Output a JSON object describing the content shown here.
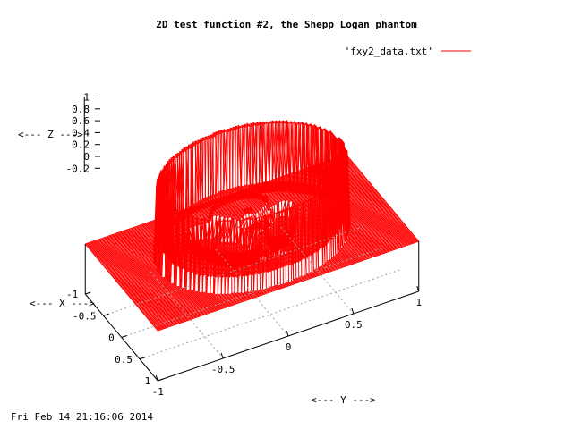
{
  "chart_data": {
    "type": "surface",
    "title": "2D test function #2, the Shepp Logan phantom",
    "legend": {
      "label": "'fxy2_data.txt'",
      "color": "#ff0000",
      "placement": "top-right"
    },
    "xlabel": "<--- X --->",
    "ylabel": "<--- Y --->",
    "zlabel": "<--- Z --->",
    "x_ticks": [
      "-1",
      "-0.5",
      "0",
      "0.5",
      "1"
    ],
    "y_ticks": [
      "-1",
      "-0.5",
      "0",
      "0.5",
      "1"
    ],
    "z_ticks": [
      "1",
      "0.8",
      "0.6",
      "0.4",
      "0.2",
      "0",
      "-0.2"
    ],
    "xlim": [
      -1,
      1
    ],
    "ylim": [
      -1,
      1
    ],
    "zlim": [
      -0.2,
      1
    ],
    "grid": true,
    "line_color": "#ff0000",
    "surface_description": "Shepp-Logan phantom: outer ellipse rim at z = 1, inner region about 0.2, background 0"
  },
  "timestamp": "Fri Feb 14 21:16:06 2014"
}
